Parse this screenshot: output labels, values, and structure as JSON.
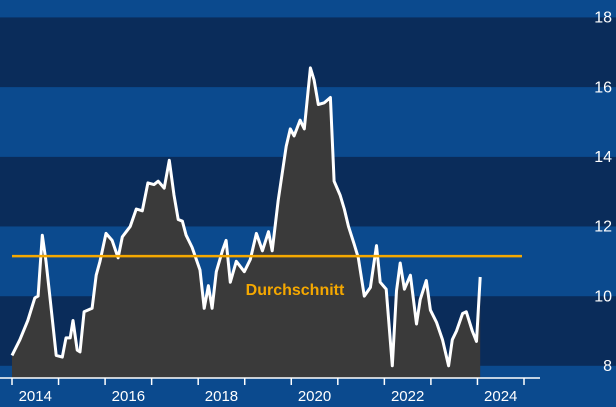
{
  "chart_data": {
    "type": "area",
    "x": [
      2014.0,
      2014.17,
      2014.34,
      2014.49,
      2014.56,
      2014.65,
      2014.73,
      2014.82,
      2014.95,
      2015.08,
      2015.16,
      2015.25,
      2015.31,
      2015.4,
      2015.46,
      2015.55,
      2015.72,
      2015.81,
      2015.89,
      2016.02,
      2016.15,
      2016.28,
      2016.37,
      2016.54,
      2016.67,
      2016.8,
      2016.92,
      2017.05,
      2017.14,
      2017.27,
      2017.38,
      2017.48,
      2017.57,
      2017.66,
      2017.74,
      2017.87,
      2018.04,
      2018.13,
      2018.22,
      2018.3,
      2018.39,
      2018.52,
      2018.6,
      2018.69,
      2018.82,
      2018.99,
      2019.12,
      2019.25,
      2019.38,
      2019.51,
      2019.59,
      2019.72,
      2019.89,
      2019.98,
      2020.06,
      2020.19,
      2020.28,
      2020.41,
      2020.49,
      2020.58,
      2020.71,
      2020.84,
      2020.92,
      2021.05,
      2021.14,
      2021.23,
      2021.35,
      2021.44,
      2021.57,
      2021.7,
      2021.83,
      2021.91,
      2022.04,
      2022.17,
      2022.26,
      2022.34,
      2022.43,
      2022.56,
      2022.69,
      2022.77,
      2022.9,
      2022.99,
      2023.12,
      2023.25,
      2023.38,
      2023.46,
      2023.55,
      2023.68,
      2023.76,
      2023.89,
      2023.98,
      2024.06
    ],
    "values": [
      8.3,
      8.75,
      9.3,
      9.95,
      10,
      11.75,
      11,
      9.9,
      8.3,
      8.25,
      8.8,
      8.8,
      9.3,
      8.45,
      8.4,
      9.55,
      9.65,
      10.6,
      11,
      11.8,
      11.6,
      11.1,
      11.7,
      12,
      12.5,
      12.45,
      13.25,
      13.2,
      13.3,
      13.1,
      13.9,
      12.9,
      12.2,
      12.15,
      11.75,
      11.4,
      10.75,
      9.65,
      10.3,
      9.65,
      10.7,
      11.3,
      11.6,
      10.4,
      11,
      10.7,
      11.05,
      11.8,
      11.3,
      11.85,
      11.3,
      12.75,
      14.3,
      14.8,
      14.6,
      15.05,
      14.8,
      16.55,
      16.2,
      15.5,
      15.55,
      15.7,
      13.3,
      12.9,
      12.5,
      12,
      11.5,
      11.1,
      10,
      10.25,
      11.45,
      10.4,
      10.2,
      8,
      10.15,
      10.95,
      10.2,
      10.6,
      9.2,
      9.9,
      10.45,
      9.6,
      9.25,
      8.75,
      8,
      8.75,
      9,
      9.5,
      9.55,
      9,
      8.7,
      10.55
    ],
    "line_color": "#ffffff",
    "fill_color": "#3a3a3a",
    "average": 11.15,
    "average_label": "Durchschnitt",
    "average_color": "#f5a800",
    "xlim": [
      2014,
      2025
    ],
    "xticks": [
      2014,
      2015,
      2016,
      2017,
      2018,
      2019,
      2020,
      2021,
      2022,
      2023,
      2024
    ],
    "xtick_labels": [
      "2014",
      "",
      "2016",
      "",
      "2018",
      "",
      "2020",
      "",
      "2022",
      "",
      "2024"
    ],
    "ylim": [
      7.65,
      18.5
    ],
    "yticks": [
      8,
      10,
      12,
      14,
      16,
      18
    ],
    "band_colors": [
      "#0a2c5a",
      "#0b4a8e"
    ]
  }
}
